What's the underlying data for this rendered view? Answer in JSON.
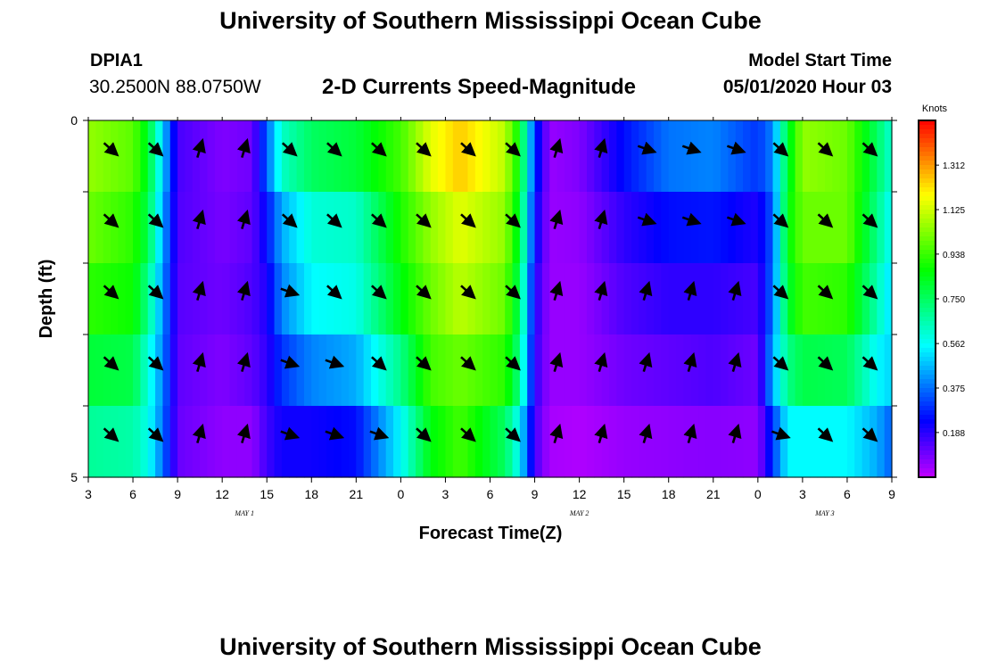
{
  "header": {
    "title": "University of Southern Mississippi Ocean Cube",
    "station_id": "DPIA1",
    "station_coords": "30.2500N 88.0750W",
    "plot_title": "2-D Currents Speed-Magnitude",
    "model_label": "Model Start Time",
    "model_time": "05/01/2020 Hour 03"
  },
  "footer": {
    "title": "University of Southern Mississippi Ocean Cube"
  },
  "chart_data": {
    "type": "heatmap",
    "title": "2-D Currents Speed-Magnitude",
    "xlabel": "Forecast Time(Z)",
    "ylabel": "Depth (ft)",
    "x_start_hour": 3,
    "x_step_hours": 3,
    "x_tick_labels": [
      "3",
      "6",
      "9",
      "12",
      "15",
      "18",
      "21",
      "0",
      "3",
      "6",
      "9",
      "12",
      "15",
      "18",
      "21",
      "0",
      "3",
      "6",
      "9"
    ],
    "date_labels": [
      {
        "text": "MAY 1",
        "tick_index": 3.5
      },
      {
        "text": "MAY 2",
        "tick_index": 11
      },
      {
        "text": "MAY 3",
        "tick_index": 16.5
      }
    ],
    "ylim": [
      0,
      5
    ],
    "y_tick_labels": [
      "0",
      "5"
    ],
    "depth_rows": 5,
    "colorbar": {
      "label": "Knots",
      "min": 0,
      "max": 1.5,
      "ticks": [
        "0.188",
        "0.375",
        "0.562",
        "0.750",
        "0.938",
        "1.125",
        "1.312"
      ]
    },
    "speed_keyframes": [
      {
        "hour": 3,
        "values": [
          1.05,
          1.0,
          0.92,
          0.8,
          0.68
        ]
      },
      {
        "hour": 6,
        "values": [
          0.98,
          0.92,
          0.88,
          0.78,
          0.66
        ]
      },
      {
        "hour": 7,
        "values": [
          0.82,
          0.78,
          0.7,
          0.6,
          0.58
        ]
      },
      {
        "hour": 8,
        "values": [
          0.5,
          0.45,
          0.42,
          0.4,
          0.38
        ]
      },
      {
        "hour": 9,
        "values": [
          0.15,
          0.14,
          0.13,
          0.12,
          0.11
        ]
      },
      {
        "hour": 12,
        "values": [
          0.08,
          0.09,
          0.1,
          0.08,
          0.06
        ]
      },
      {
        "hour": 14,
        "values": [
          0.1,
          0.12,
          0.14,
          0.12,
          0.06
        ]
      },
      {
        "hour": 15,
        "values": [
          0.35,
          0.25,
          0.2,
          0.18,
          0.16
        ]
      },
      {
        "hour": 16,
        "values": [
          0.62,
          0.45,
          0.4,
          0.3,
          0.22
        ]
      },
      {
        "hour": 18,
        "values": [
          0.75,
          0.6,
          0.55,
          0.4,
          0.22
        ]
      },
      {
        "hour": 21,
        "values": [
          0.8,
          0.62,
          0.58,
          0.45,
          0.25
        ]
      },
      {
        "hour": 24,
        "values": [
          0.95,
          0.9,
          0.85,
          0.7,
          0.55
        ]
      },
      {
        "hour": 26,
        "values": [
          1.15,
          1.05,
          1.0,
          0.95,
          0.85
        ]
      },
      {
        "hour": 28,
        "values": [
          1.25,
          1.15,
          1.1,
          1.0,
          0.95
        ]
      },
      {
        "hour": 31,
        "values": [
          1.1,
          1.05,
          1.0,
          0.92,
          0.75
        ]
      },
      {
        "hour": 32,
        "values": [
          0.85,
          0.8,
          0.75,
          0.7,
          0.55
        ]
      },
      {
        "hour": 33,
        "values": [
          0.3,
          0.25,
          0.2,
          0.18,
          0.15
        ]
      },
      {
        "hour": 34,
        "values": [
          0.05,
          0.05,
          0.05,
          0.05,
          0.03
        ]
      },
      {
        "hour": 36,
        "values": [
          0.08,
          0.06,
          0.05,
          0.05,
          0.02
        ]
      },
      {
        "hour": 39,
        "values": [
          0.25,
          0.18,
          0.14,
          0.1,
          0.05
        ]
      },
      {
        "hour": 42,
        "values": [
          0.38,
          0.25,
          0.18,
          0.12,
          0.06
        ]
      },
      {
        "hour": 45,
        "values": [
          0.4,
          0.26,
          0.18,
          0.14,
          0.07
        ]
      },
      {
        "hour": 48,
        "values": [
          0.3,
          0.2,
          0.15,
          0.1,
          0.06
        ]
      },
      {
        "hour": 49,
        "values": [
          0.4,
          0.35,
          0.38,
          0.45,
          0.3
        ]
      },
      {
        "hour": 50,
        "values": [
          0.8,
          0.85,
          0.8,
          0.7,
          0.55
        ]
      },
      {
        "hour": 51,
        "values": [
          1.05,
          1.0,
          0.95,
          0.78,
          0.55
        ]
      },
      {
        "hour": 54,
        "values": [
          1.0,
          1.0,
          0.92,
          0.76,
          0.55
        ]
      },
      {
        "hour": 56,
        "values": [
          0.75,
          0.7,
          0.65,
          0.55,
          0.45
        ]
      },
      {
        "hour": 57,
        "values": [
          0.6,
          0.55,
          0.5,
          0.5,
          0.35
        ]
      }
    ]
  },
  "colors": {
    "arrow": "#000000",
    "frame": "#000000"
  }
}
